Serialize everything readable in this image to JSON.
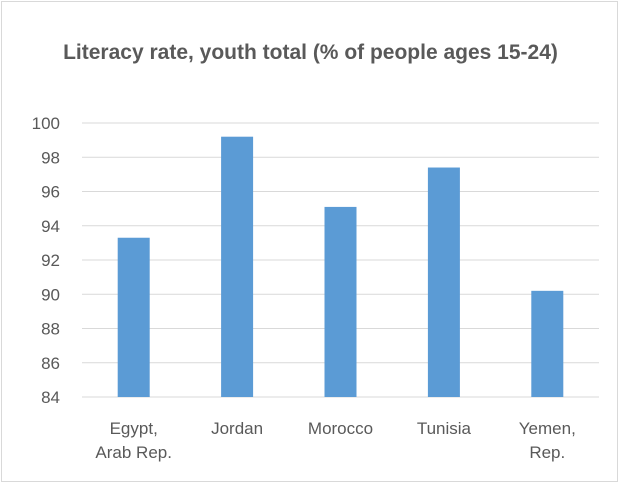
{
  "chart_data": {
    "type": "bar",
    "title": "Literacy rate, youth total (% of people ages 15-24)",
    "categories": [
      [
        "Egypt,",
        "Arab Rep."
      ],
      [
        "Jordan"
      ],
      [
        "Morocco"
      ],
      [
        "Tunisia"
      ],
      [
        "Yemen,",
        "Rep."
      ]
    ],
    "values": [
      93.3,
      99.2,
      95.1,
      97.4,
      90.2
    ],
    "ylim": [
      84,
      100
    ],
    "yticks": [
      84,
      86,
      88,
      90,
      92,
      94,
      96,
      98,
      100
    ],
    "grid": true,
    "legend": "none",
    "colors": {
      "bar": "#5b9bd5",
      "grid": "#d9d9d9",
      "text": "#595959"
    }
  }
}
